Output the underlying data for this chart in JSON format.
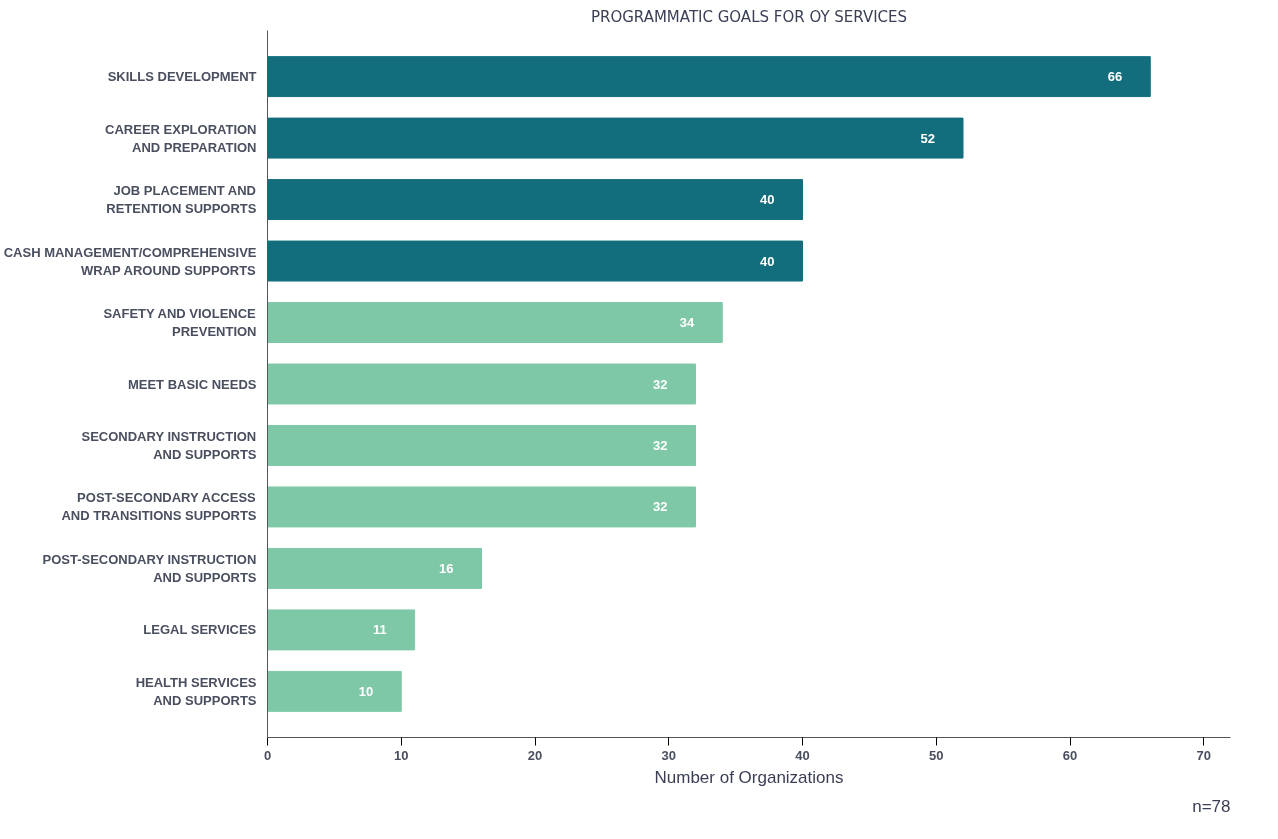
{
  "chart_data": {
    "type": "bar",
    "orientation": "horizontal",
    "title": "PROGRAMMATIC GOALS FOR OY SERVICES",
    "categories": [
      "SKILLS DEVELOPMENT",
      "CAREER EXPLORATION\nAND PREPARATION",
      "JOB PLACEMENT AND\nRETENTION SUPPORTS",
      "CASH MANAGEMENT/COMPREHENSIVE\nWRAP AROUND SUPPORTS",
      "SAFETY AND VIOLENCE\nPREVENTION",
      "MEET BASIC NEEDS",
      "SECONDARY INSTRUCTION\nAND SUPPORTS",
      "POST-SECONDARY ACCESS\nAND TRANSITIONS SUPPORTS",
      "POST-SECONDARY INSTRUCTION\nAND SUPPORTS",
      "LEGAL SERVICES",
      "HEALTH SERVICES\nAND SUPPORTS"
    ],
    "values": [
      66,
      52,
      40,
      40,
      34,
      32,
      32,
      32,
      16,
      11,
      10
    ],
    "colors": [
      "#126e7d",
      "#126e7d",
      "#126e7d",
      "#126e7d",
      "#7ec8a8",
      "#7ec8a8",
      "#7ec8a8",
      "#7ec8a8",
      "#7ec8a8",
      "#7ec8a8",
      "#7ec8a8"
    ],
    "xlim": [
      0,
      72
    ],
    "xticks": [
      0,
      10,
      20,
      30,
      40,
      50,
      60,
      70
    ],
    "xlabel": "Number of Organizations",
    "data_labels": true,
    "grid": false,
    "annotations": [
      "n=78"
    ]
  }
}
